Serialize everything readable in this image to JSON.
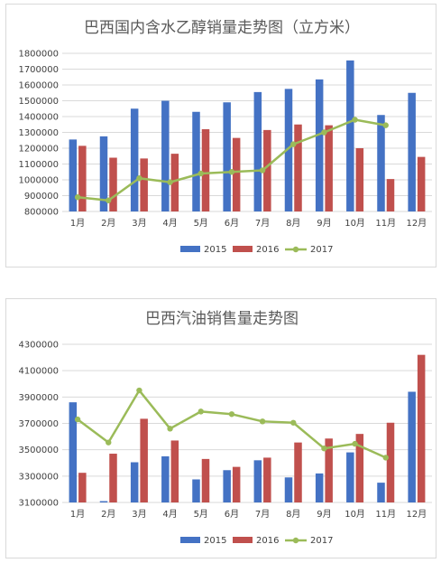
{
  "chart_data": [
    {
      "type": "bar",
      "title": "巴西国内含水乙醇销量走势图（立方米）",
      "categories": [
        "1月",
        "2月",
        "3月",
        "4月",
        "5月",
        "6月",
        "7月",
        "8月",
        "9月",
        "10月",
        "11月",
        "12月"
      ],
      "series": [
        {
          "name": "2015",
          "type": "bar",
          "color": "#4472c4",
          "values": [
            1255000,
            1275000,
            1450000,
            1500000,
            1430000,
            1490000,
            1555000,
            1575000,
            1635000,
            1755000,
            1410000,
            1550000
          ]
        },
        {
          "name": "2016",
          "type": "bar",
          "color": "#c0504d",
          "values": [
            1215000,
            1140000,
            1135000,
            1165000,
            1320000,
            1265000,
            1315000,
            1350000,
            1345000,
            1200000,
            1005000,
            1145000
          ]
        },
        {
          "name": "2017",
          "type": "line",
          "color": "#9bbb59",
          "values": [
            890000,
            870000,
            1010000,
            985000,
            1040000,
            1050000,
            1060000,
            1225000,
            1300000,
            1380000,
            1345000,
            null
          ]
        }
      ],
      "ylim": [
        800000,
        1800000
      ],
      "ytick_step": 100000,
      "yticks": [
        "800000",
        "900000",
        "1000000",
        "1100000",
        "1200000",
        "1300000",
        "1400000",
        "1500000",
        "1600000",
        "1700000",
        "1800000"
      ],
      "grid": true,
      "legend": "bottom"
    },
    {
      "type": "bar",
      "title": "巴西汽油销售量走势图",
      "categories": [
        "1月",
        "2月",
        "3月",
        "4月",
        "5月",
        "6月",
        "7月",
        "8月",
        "9月",
        "10月",
        "11月",
        "12月"
      ],
      "series": [
        {
          "name": "2015",
          "type": "bar",
          "color": "#4472c4",
          "values": [
            3860000,
            3110000,
            3405000,
            3450000,
            3275000,
            3345000,
            3420000,
            3290000,
            3320000,
            3480000,
            3250000,
            3940000
          ]
        },
        {
          "name": "2016",
          "type": "bar",
          "color": "#c0504d",
          "values": [
            3325000,
            3470000,
            3735000,
            3570000,
            3430000,
            3370000,
            3440000,
            3555000,
            3585000,
            3620000,
            3705000,
            4220000
          ]
        },
        {
          "name": "2017",
          "type": "line",
          "color": "#9bbb59",
          "values": [
            3730000,
            3555000,
            3950000,
            3660000,
            3790000,
            3770000,
            3715000,
            3705000,
            3510000,
            3545000,
            3440000,
            null
          ]
        }
      ],
      "ylim": [
        3100000,
        4300000
      ],
      "ytick_step": 200000,
      "yticks": [
        "3100000",
        "3300000",
        "3500000",
        "3700000",
        "3900000",
        "4100000",
        "4300000"
      ],
      "grid": true,
      "legend": "bottom"
    }
  ]
}
